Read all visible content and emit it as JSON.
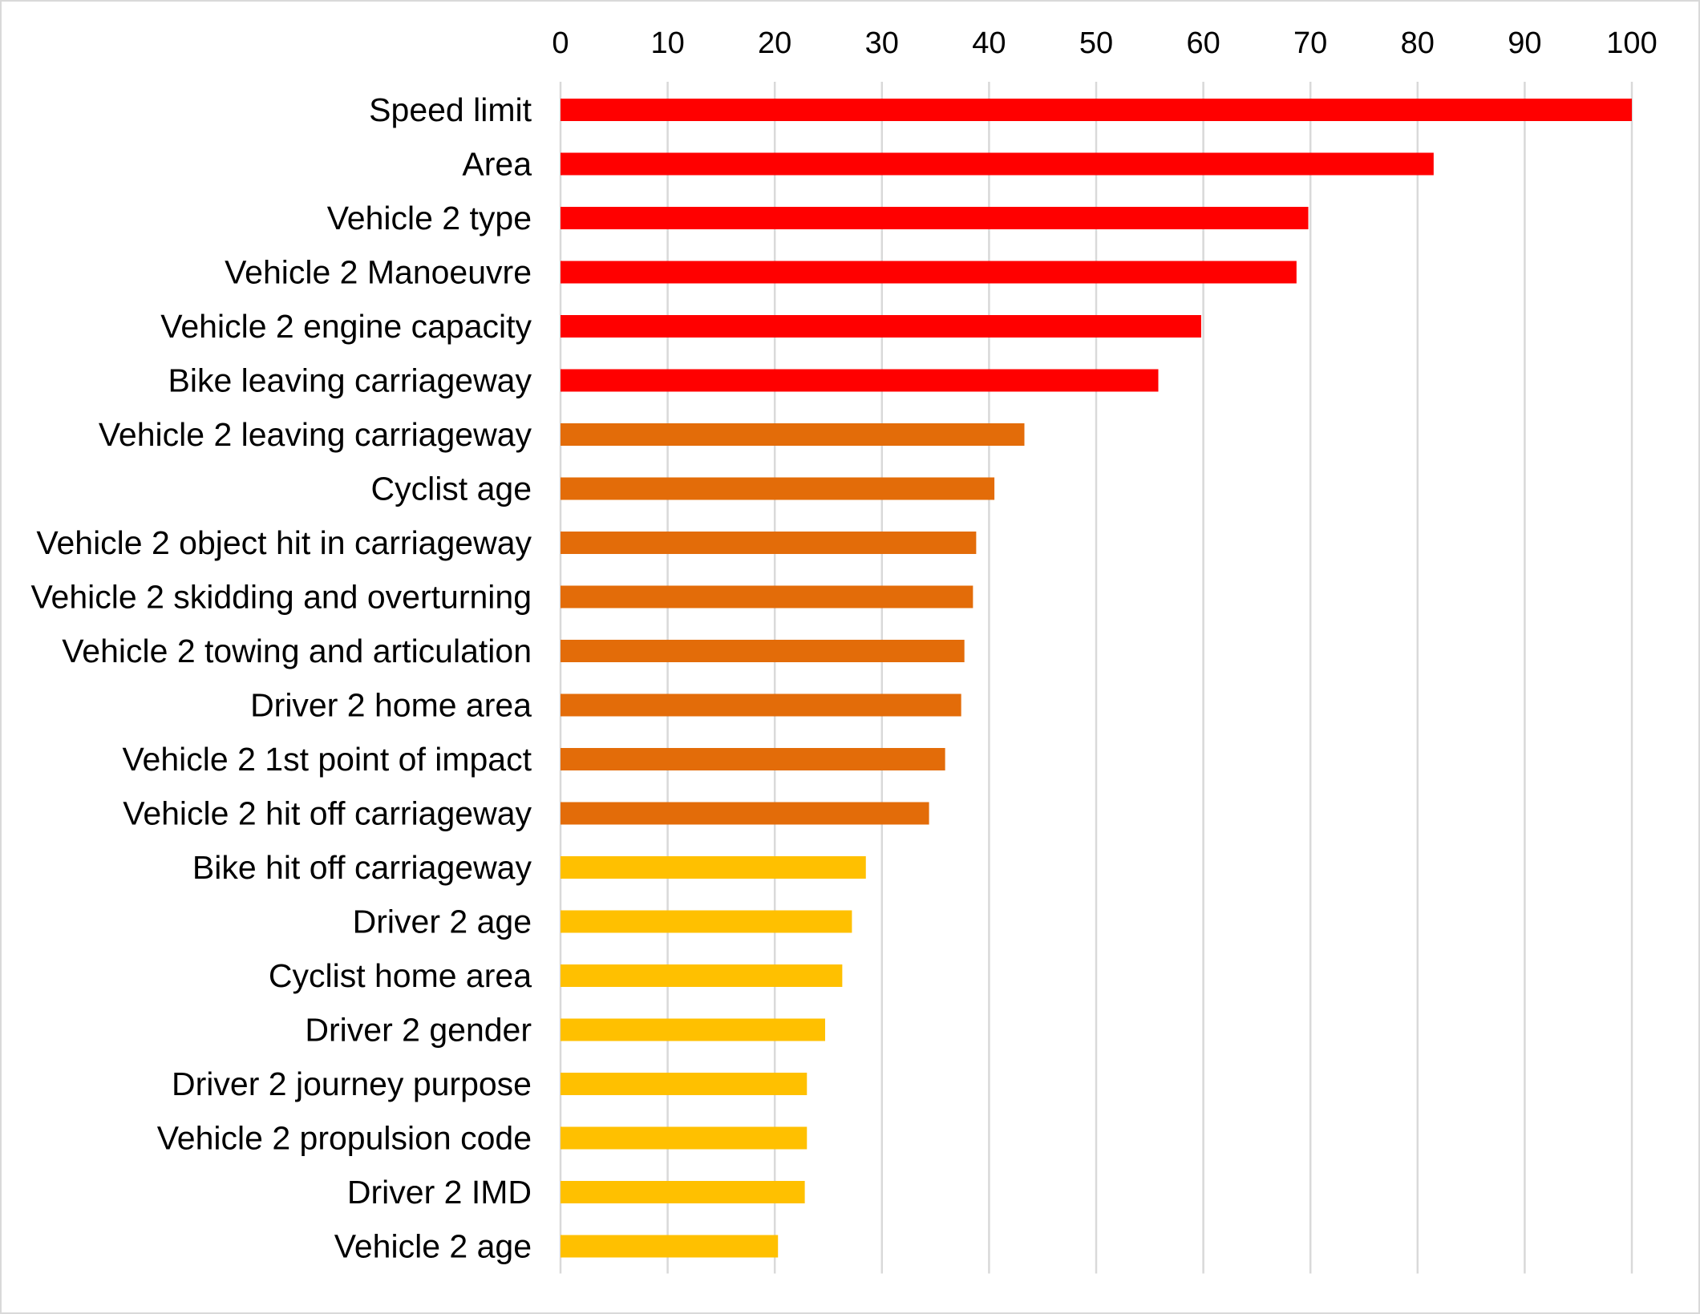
{
  "chart_data": {
    "type": "bar",
    "orientation": "horizontal",
    "title": "",
    "xlabel": "",
    "ylabel": "",
    "xlim": [
      0,
      100
    ],
    "x_ticks": [
      0,
      10,
      20,
      30,
      40,
      50,
      60,
      70,
      80,
      90,
      100
    ],
    "x_axis_position": "top",
    "grid": "vertical",
    "legend": "none",
    "categories": [
      "Speed limit",
      "Area",
      "Vehicle 2 type",
      "Vehicle 2 Manoeuvre",
      "Vehicle 2 engine capacity",
      "Bike leaving carriageway",
      "Vehicle 2 leaving carriageway",
      "Cyclist age",
      "Vehicle 2 object hit in carriageway",
      "Vehicle 2 skidding and overturning",
      "Vehicle 2 towing and articulation",
      "Driver 2 home area",
      "Vehicle 2 1st point of impact",
      "Vehicle 2 hit off carriageway",
      "Bike hit off carriageway",
      "Driver 2 age",
      "Cyclist home area",
      "Driver 2 gender",
      "Driver 2 journey purpose",
      "Vehicle 2 propulsion code",
      "Driver 2 IMD",
      "Vehicle 2 age"
    ],
    "values": [
      100,
      81.5,
      69.8,
      68.7,
      59.8,
      55.8,
      43.3,
      40.5,
      38.8,
      38.5,
      37.7,
      37.4,
      35.9,
      34.4,
      28.5,
      27.2,
      26.3,
      24.7,
      23.0,
      23.0,
      22.8,
      20.3
    ],
    "bar_colors": [
      "#ff0000",
      "#ff0000",
      "#ff0000",
      "#ff0000",
      "#ff0000",
      "#ff0000",
      "#e36c09",
      "#e36c09",
      "#e36c09",
      "#e36c09",
      "#e36c09",
      "#e36c09",
      "#e36c09",
      "#e36c09",
      "#ffc000",
      "#ffc000",
      "#ffc000",
      "#ffc000",
      "#ffc000",
      "#ffc000",
      "#ffc000",
      "#ffc000"
    ],
    "gridline_color": "#d9d9d9"
  }
}
